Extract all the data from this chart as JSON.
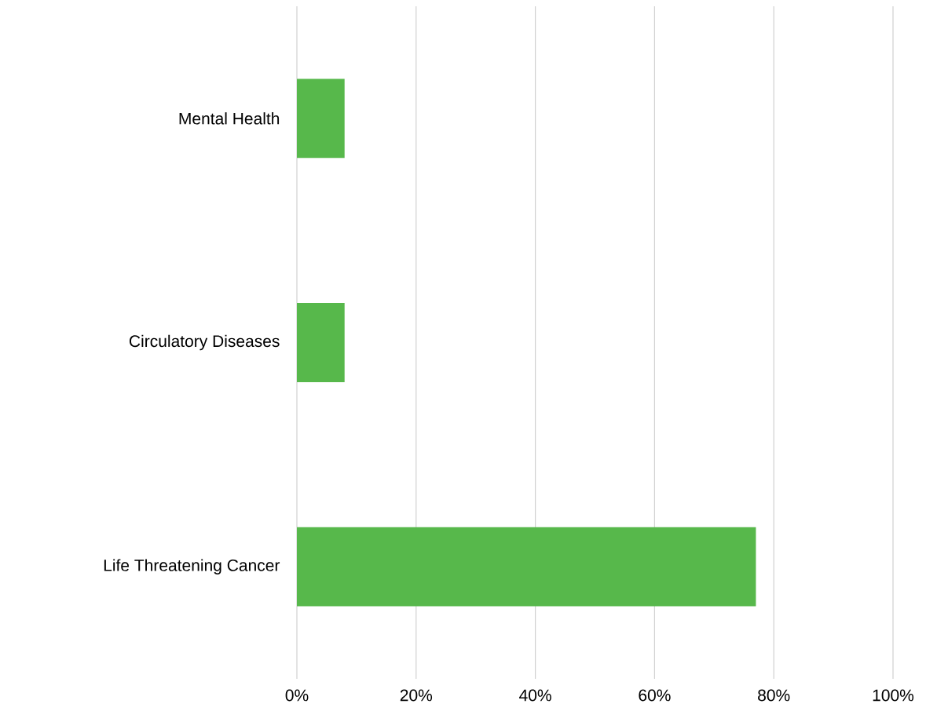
{
  "chart_data": {
    "type": "bar",
    "orientation": "horizontal",
    "categories": [
      "Mental Health",
      "Circulatory Diseases",
      "Life Threatening Cancer"
    ],
    "values": [
      8,
      8,
      77
    ],
    "color": "#57b84b",
    "xlim": [
      0,
      100
    ],
    "xticks": [
      {
        "value": 0,
        "label": "0%"
      },
      {
        "value": 20,
        "label": "20%"
      },
      {
        "value": 40,
        "label": "40%"
      },
      {
        "value": 60,
        "label": "60%"
      },
      {
        "value": 80,
        "label": "80%"
      },
      {
        "value": 100,
        "label": "100%"
      }
    ],
    "grid": "x"
  }
}
